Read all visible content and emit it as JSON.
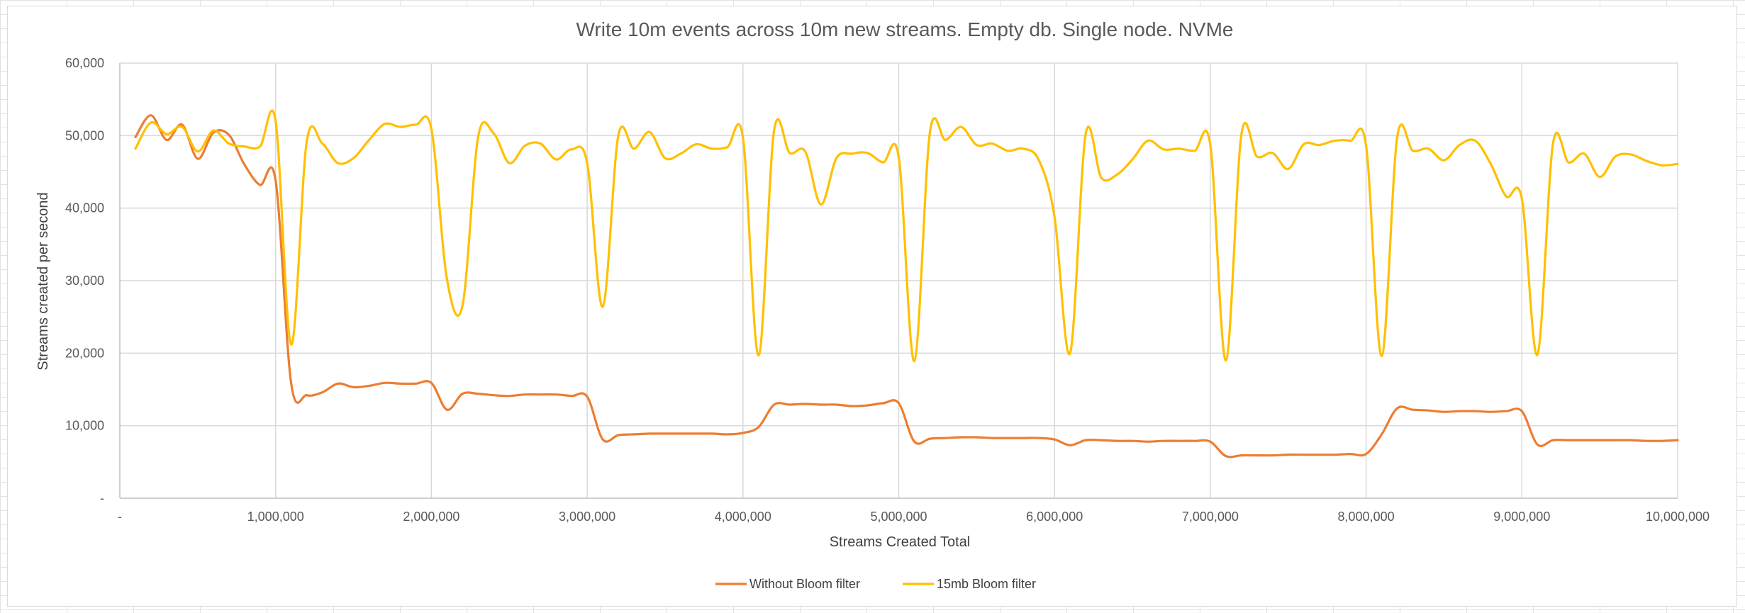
{
  "chart_data": {
    "type": "line",
    "title": "Write 10m events across 10m new streams. Empty db. Single node. NVMe",
    "xlabel": "Streams Created Total",
    "ylabel": "Streams created per second",
    "xlim": [
      0,
      10000000
    ],
    "ylim": [
      0,
      60000
    ],
    "x_ticks": [
      0,
      1000000,
      2000000,
      3000000,
      4000000,
      5000000,
      6000000,
      7000000,
      8000000,
      9000000,
      10000000
    ],
    "x_tick_labels": [
      "-",
      "1,000,000",
      "2,000,000",
      "3,000,000",
      "4,000,000",
      "5,000,000",
      "6,000,000",
      "7,000,000",
      "8,000,000",
      "9,000,000",
      "10,000,000"
    ],
    "y_ticks": [
      0,
      10000,
      20000,
      30000,
      40000,
      50000,
      60000
    ],
    "y_tick_labels": [
      "-",
      "10,000",
      "20,000",
      "30,000",
      "40,000",
      "50,000",
      "60,000"
    ],
    "grid": {
      "vertical": true,
      "horizontal": true
    },
    "legend_position": "bottom",
    "series": [
      {
        "name": "Without Bloom filter",
        "color": "#ED7D31",
        "points": [
          [
            100000,
            49800
          ],
          [
            200000,
            52800
          ],
          [
            300000,
            49400
          ],
          [
            400000,
            51500
          ],
          [
            500000,
            46800
          ],
          [
            600000,
            50400
          ],
          [
            700000,
            50100
          ],
          [
            800000,
            46000
          ],
          [
            900000,
            43200
          ],
          [
            1000000,
            43800
          ],
          [
            1100000,
            15800
          ],
          [
            1200000,
            14200
          ],
          [
            1300000,
            14600
          ],
          [
            1400000,
            15800
          ],
          [
            1500000,
            15300
          ],
          [
            1600000,
            15500
          ],
          [
            1700000,
            15900
          ],
          [
            1800000,
            15800
          ],
          [
            1900000,
            15800
          ],
          [
            2000000,
            15900
          ],
          [
            2100000,
            12200
          ],
          [
            2200000,
            14400
          ],
          [
            2300000,
            14400
          ],
          [
            2400000,
            14200
          ],
          [
            2500000,
            14100
          ],
          [
            2600000,
            14300
          ],
          [
            2700000,
            14300
          ],
          [
            2800000,
            14300
          ],
          [
            2900000,
            14100
          ],
          [
            3000000,
            14000
          ],
          [
            3100000,
            8100
          ],
          [
            3200000,
            8700
          ],
          [
            3300000,
            8800
          ],
          [
            3400000,
            8900
          ],
          [
            3500000,
            8900
          ],
          [
            3600000,
            8900
          ],
          [
            3700000,
            8900
          ],
          [
            3800000,
            8900
          ],
          [
            3900000,
            8800
          ],
          [
            4000000,
            9000
          ],
          [
            4100000,
            9800
          ],
          [
            4200000,
            12900
          ],
          [
            4300000,
            12900
          ],
          [
            4400000,
            13000
          ],
          [
            4500000,
            12900
          ],
          [
            4600000,
            12900
          ],
          [
            4700000,
            12700
          ],
          [
            4800000,
            12800
          ],
          [
            4900000,
            13100
          ],
          [
            5000000,
            13100
          ],
          [
            5100000,
            7800
          ],
          [
            5200000,
            8200
          ],
          [
            5300000,
            8300
          ],
          [
            5400000,
            8400
          ],
          [
            5500000,
            8400
          ],
          [
            5600000,
            8300
          ],
          [
            5700000,
            8300
          ],
          [
            5800000,
            8300
          ],
          [
            5900000,
            8300
          ],
          [
            6000000,
            8100
          ],
          [
            6100000,
            7300
          ],
          [
            6200000,
            8000
          ],
          [
            6300000,
            8000
          ],
          [
            6400000,
            7900
          ],
          [
            6500000,
            7900
          ],
          [
            6600000,
            7800
          ],
          [
            6700000,
            7900
          ],
          [
            6800000,
            7900
          ],
          [
            6900000,
            7900
          ],
          [
            7000000,
            7800
          ],
          [
            7100000,
            5800
          ],
          [
            7200000,
            5900
          ],
          [
            7300000,
            5900
          ],
          [
            7400000,
            5900
          ],
          [
            7500000,
            6000
          ],
          [
            7600000,
            6000
          ],
          [
            7700000,
            6000
          ],
          [
            7800000,
            6000
          ],
          [
            7900000,
            6100
          ],
          [
            8000000,
            6100
          ],
          [
            8100000,
            8800
          ],
          [
            8200000,
            12400
          ],
          [
            8300000,
            12200
          ],
          [
            8400000,
            12100
          ],
          [
            8500000,
            11900
          ],
          [
            8600000,
            12000
          ],
          [
            8700000,
            12000
          ],
          [
            8800000,
            11900
          ],
          [
            8900000,
            12000
          ],
          [
            9000000,
            12000
          ],
          [
            9100000,
            7400
          ],
          [
            9200000,
            8000
          ],
          [
            9300000,
            8000
          ],
          [
            9400000,
            8000
          ],
          [
            9500000,
            8000
          ],
          [
            9600000,
            8000
          ],
          [
            9700000,
            8000
          ],
          [
            9800000,
            7900
          ],
          [
            9900000,
            7900
          ],
          [
            10000000,
            8000
          ]
        ]
      },
      {
        "name": "15mb Bloom filter",
        "color": "#FFC000",
        "points": [
          [
            100000,
            48200
          ],
          [
            200000,
            51800
          ],
          [
            300000,
            50200
          ],
          [
            400000,
            51200
          ],
          [
            500000,
            47800
          ],
          [
            600000,
            50700
          ],
          [
            700000,
            48900
          ],
          [
            800000,
            48500
          ],
          [
            900000,
            48500
          ],
          [
            1000000,
            52000
          ],
          [
            1100000,
            21200
          ],
          [
            1200000,
            49200
          ],
          [
            1300000,
            48900
          ],
          [
            1400000,
            46200
          ],
          [
            1500000,
            46900
          ],
          [
            1600000,
            49400
          ],
          [
            1700000,
            51600
          ],
          [
            1800000,
            51200
          ],
          [
            1900000,
            51500
          ],
          [
            2000000,
            50900
          ],
          [
            2100000,
            30200
          ],
          [
            2200000,
            26600
          ],
          [
            2300000,
            49800
          ],
          [
            2400000,
            50300
          ],
          [
            2500000,
            46200
          ],
          [
            2600000,
            48600
          ],
          [
            2700000,
            48900
          ],
          [
            2800000,
            46700
          ],
          [
            2900000,
            48100
          ],
          [
            3000000,
            46200
          ],
          [
            3100000,
            26400
          ],
          [
            3200000,
            50000
          ],
          [
            3300000,
            48200
          ],
          [
            3400000,
            50500
          ],
          [
            3500000,
            46900
          ],
          [
            3600000,
            47500
          ],
          [
            3700000,
            48800
          ],
          [
            3800000,
            48200
          ],
          [
            3900000,
            48400
          ],
          [
            4000000,
            49700
          ],
          [
            4100000,
            19700
          ],
          [
            4200000,
            50700
          ],
          [
            4300000,
            47600
          ],
          [
            4400000,
            47800
          ],
          [
            4500000,
            40500
          ],
          [
            4600000,
            46900
          ],
          [
            4700000,
            47500
          ],
          [
            4800000,
            47600
          ],
          [
            4900000,
            46300
          ],
          [
            5000000,
            47000
          ],
          [
            5100000,
            18900
          ],
          [
            5200000,
            50400
          ],
          [
            5300000,
            49400
          ],
          [
            5400000,
            51200
          ],
          [
            5500000,
            48700
          ],
          [
            5600000,
            48900
          ],
          [
            5700000,
            47900
          ],
          [
            5800000,
            48200
          ],
          [
            5900000,
            46600
          ],
          [
            6000000,
            38800
          ],
          [
            6100000,
            20000
          ],
          [
            6200000,
            50200
          ],
          [
            6300000,
            44200
          ],
          [
            6400000,
            44600
          ],
          [
            6500000,
            46700
          ],
          [
            6600000,
            49300
          ],
          [
            6700000,
            48100
          ],
          [
            6800000,
            48200
          ],
          [
            6900000,
            47900
          ],
          [
            7000000,
            48700
          ],
          [
            7100000,
            19000
          ],
          [
            7200000,
            50200
          ],
          [
            7300000,
            47100
          ],
          [
            7400000,
            47600
          ],
          [
            7500000,
            45400
          ],
          [
            7600000,
            48800
          ],
          [
            7700000,
            48700
          ],
          [
            7800000,
            49300
          ],
          [
            7900000,
            49300
          ],
          [
            8000000,
            48600
          ],
          [
            8100000,
            19600
          ],
          [
            8200000,
            49800
          ],
          [
            8300000,
            47900
          ],
          [
            8400000,
            48200
          ],
          [
            8500000,
            46600
          ],
          [
            8600000,
            48700
          ],
          [
            8700000,
            49300
          ],
          [
            8800000,
            46100
          ],
          [
            8900000,
            41600
          ],
          [
            9000000,
            41300
          ],
          [
            9100000,
            19800
          ],
          [
            9200000,
            48900
          ],
          [
            9300000,
            46300
          ],
          [
            9400000,
            47500
          ],
          [
            9500000,
            44300
          ],
          [
            9600000,
            47100
          ],
          [
            9700000,
            47400
          ],
          [
            9800000,
            46500
          ],
          [
            9900000,
            45900
          ],
          [
            10000000,
            46100
          ]
        ]
      }
    ]
  }
}
